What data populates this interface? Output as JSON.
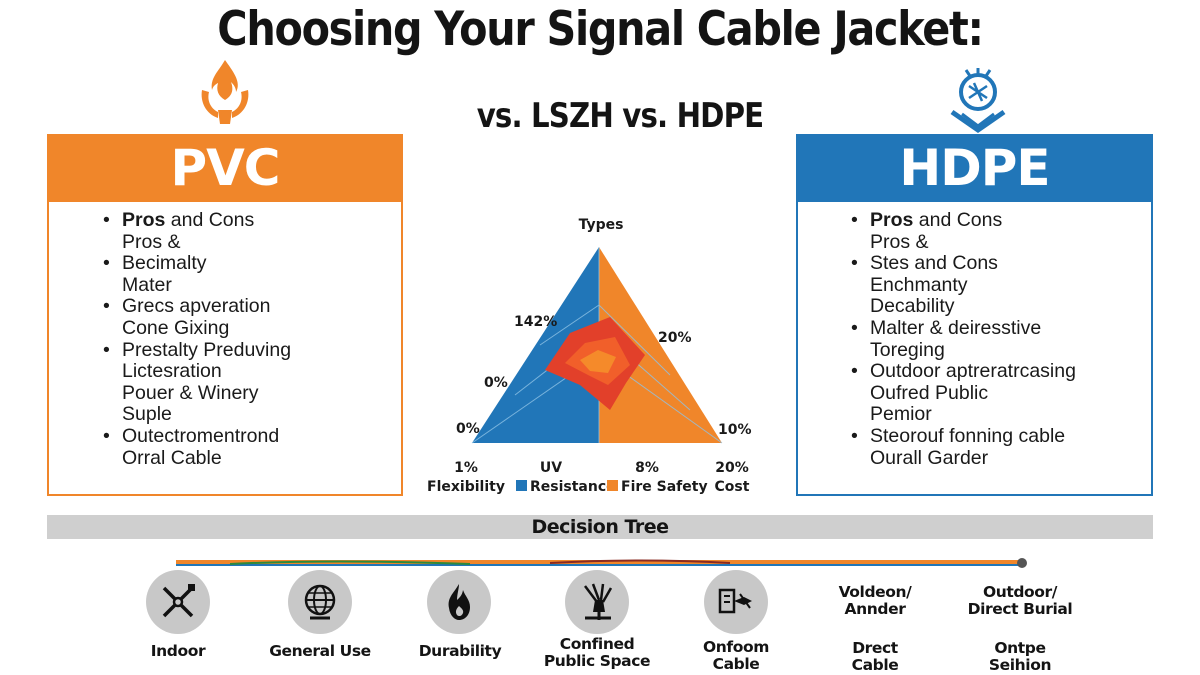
{
  "title": "Choosing Your Signal Cable Jacket:",
  "subtitle": "vs. LSZH vs. HDPE",
  "colors": {
    "pvc_orange": "#f0862a",
    "hdpe_blue": "#2176b8",
    "fire_red": "#e2402a",
    "gray_bar": "#cfcfcf"
  },
  "pvc": {
    "icon": "flame-icon",
    "header": "PVC",
    "items": [
      {
        "bold": "Pros",
        "text": " and Cons",
        "bullet": true
      },
      {
        "bold": "",
        "text": "Pros &",
        "bullet": false
      },
      {
        "bold": "",
        "text": "Becimalty",
        "bullet": true
      },
      {
        "bold": "",
        "text": "Mater",
        "bullet": false
      },
      {
        "bold": "",
        "text": "Grecs apveration",
        "bullet": true
      },
      {
        "bold": "",
        "text": "Cone Gixing",
        "bullet": false
      },
      {
        "bold": "",
        "text": "Prestalty Preduving",
        "bullet": true
      },
      {
        "bold": "",
        "text": "Lictesration",
        "bullet": false
      },
      {
        "bold": "",
        "text": "Pouer & Winery",
        "bullet": false
      },
      {
        "bold": "",
        "text": "Suple",
        "bullet": false
      },
      {
        "bold": "",
        "text": "Outectromentrond",
        "bullet": true
      },
      {
        "bold": "",
        "text": "Orral Cable",
        "bullet": false
      }
    ]
  },
  "hdpe": {
    "icon": "shield-emblem-icon",
    "header": "HDPE",
    "items": [
      {
        "bold": "Pros",
        "text": " and Cons",
        "bullet": true
      },
      {
        "bold": "",
        "text": "Pros &",
        "bullet": false
      },
      {
        "bold": "",
        "text": "Stes and Cons",
        "bullet": true
      },
      {
        "bold": "",
        "text": "Enchmanty",
        "bullet": false
      },
      {
        "bold": "",
        "text": "Decability",
        "bullet": false
      },
      {
        "bold": "",
        "text": "Malter & deiresstive",
        "bullet": true
      },
      {
        "bold": "",
        "text": "Toreging",
        "bullet": false
      },
      {
        "bold": "",
        "text": "Outdoor aptreratrcasing",
        "bullet": true
      },
      {
        "bold": "",
        "text": "Oufred Public",
        "bullet": false
      },
      {
        "bold": "",
        "text": "Pemior",
        "bullet": false
      },
      {
        "bold": "",
        "text": "Steorouf fonning cable",
        "bullet": true
      },
      {
        "bold": "",
        "text": "Ourall Garder",
        "bullet": false
      }
    ]
  },
  "radar": {
    "title": "Types",
    "left_labels": [
      "142%",
      "0%",
      "0%"
    ],
    "right_labels": [
      "20%",
      "10%"
    ],
    "axis_values": [
      "1%",
      "UV",
      "8%",
      "20%"
    ],
    "axis_names": [
      "Flexibility",
      "Resistance",
      "Fire Safety",
      "Cost"
    ],
    "legend_colors": [
      "#2176b8",
      "#f0862a"
    ]
  },
  "decision_tree": {
    "title": "Decision Tree",
    "nodes": [
      {
        "icon": "crossed-tools-icon",
        "label": "Indoor"
      },
      {
        "icon": "globe-icon",
        "label": "General Use"
      },
      {
        "icon": "flame-icon",
        "label": "Durability"
      },
      {
        "icon": "cable-bundle-icon",
        "label": "Confined\nPublic Space"
      },
      {
        "icon": "cable-connector-icon",
        "label": "Onfoom\nCable"
      },
      {
        "icon": "",
        "label": "Voldeon/\nAnnder"
      },
      {
        "icon": "",
        "label": "Outdoor/\nDirect Burial"
      }
    ],
    "sub_labels": [
      "Drect\nCable",
      "Ontpe\nSeihion"
    ]
  }
}
